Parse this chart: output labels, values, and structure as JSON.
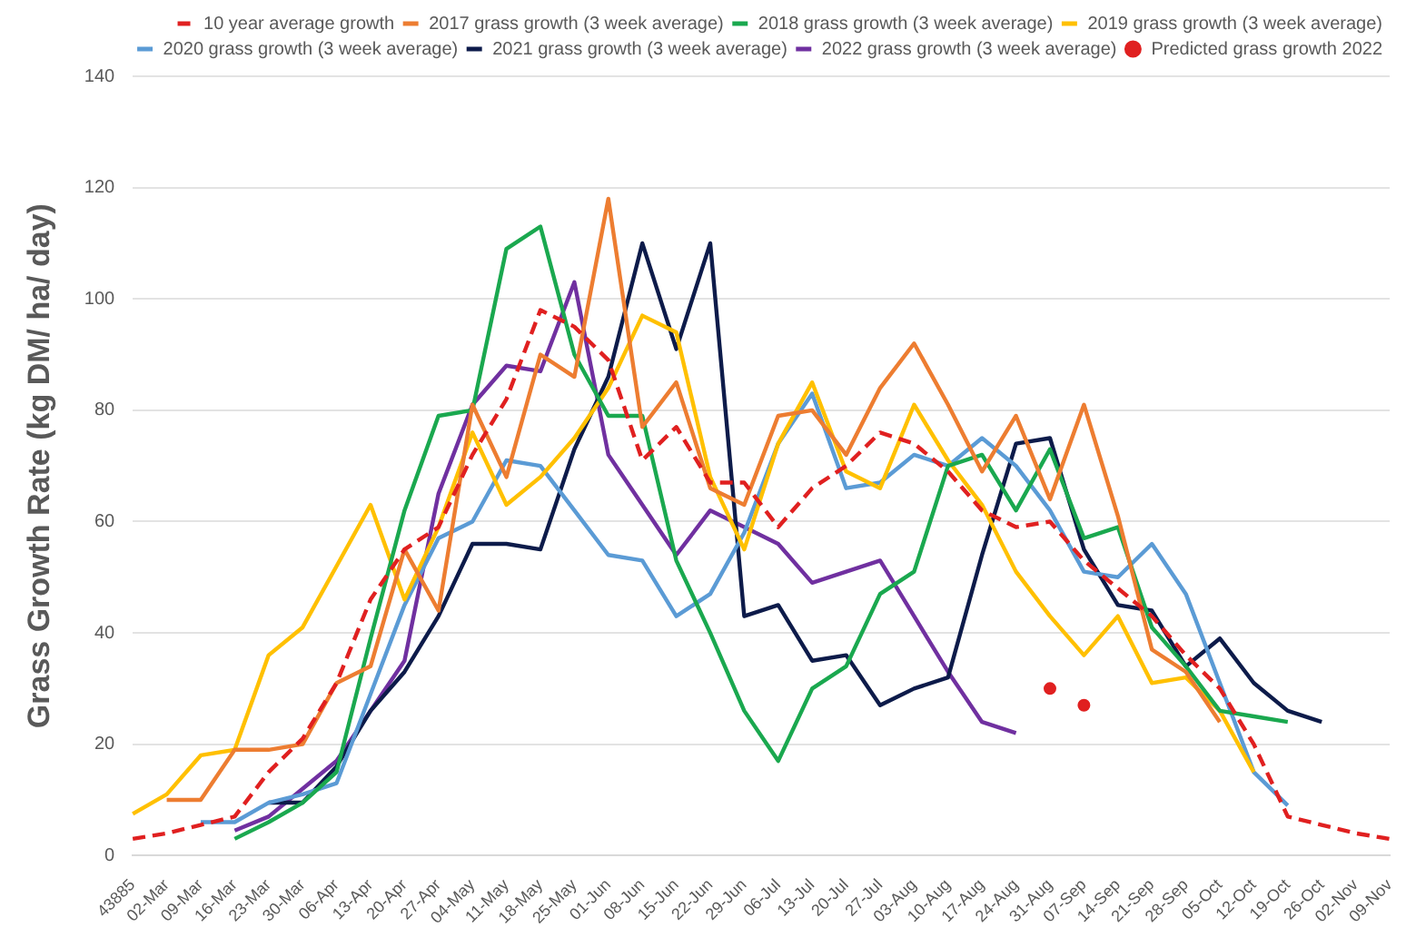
{
  "chart_data": {
    "type": "line",
    "ylabel": "Grass Growth Rate (kg DM/ ha/ day)",
    "categories": [
      "43885",
      "02-Mar",
      "09-Mar",
      "16-Mar",
      "23-Mar",
      "30-Mar",
      "06-Apr",
      "13-Apr",
      "20-Apr",
      "27-Apr",
      "04-May",
      "11-May",
      "18-May",
      "25-May",
      "01-Jun",
      "08-Jun",
      "15-Jun",
      "22-Jun",
      "29-Jun",
      "06-Jul",
      "13-Jul",
      "20-Jul",
      "27-Jul",
      "03-Aug",
      "10-Aug",
      "17-Aug",
      "24-Aug",
      "31-Aug",
      "07-Sep",
      "14-Sep",
      "21-Sep",
      "28-Sep",
      "05-Oct",
      "12-Oct",
      "19-Oct",
      "26-Oct",
      "02-Nov",
      "09-Nov"
    ],
    "ylim": [
      0,
      140
    ],
    "yticks": [
      0,
      20,
      40,
      60,
      80,
      100,
      120,
      140
    ],
    "grid": "y",
    "legend": "top right",
    "marker": "none",
    "series": [
      {
        "name": "10 year average growth",
        "color": "#e02020",
        "line_style": "dashed",
        "values": [
          3,
          4,
          5.5,
          7,
          15,
          21,
          31,
          46,
          55,
          59,
          72,
          82,
          98,
          95,
          89,
          71,
          77,
          67,
          67,
          59,
          66,
          70,
          76,
          74,
          69,
          62,
          59,
          60,
          53,
          48,
          43,
          36,
          30,
          20,
          7,
          5.5,
          4,
          3
        ]
      },
      {
        "name": "2017 grass growth (3 week average)",
        "color": "#ed7d31",
        "values": [
          null,
          10,
          10,
          19,
          19,
          20,
          31,
          34,
          55,
          44,
          81,
          68,
          90,
          86,
          118,
          77,
          85,
          66,
          63,
          79,
          80,
          72,
          84,
          92,
          81,
          69,
          79,
          64,
          81,
          61,
          37,
          33,
          24,
          null,
          null,
          null,
          null,
          null
        ]
      },
      {
        "name": "2018 grass growth (3 week average)",
        "color": "#1aa84f",
        "values": [
          null,
          null,
          null,
          3,
          6,
          9.5,
          15,
          39,
          62,
          79,
          80,
          109,
          113,
          90,
          79,
          79,
          53,
          40,
          26,
          17,
          30,
          34,
          47,
          51,
          70,
          72,
          62,
          73,
          57,
          59,
          41,
          34,
          26,
          25,
          24,
          null,
          null,
          null
        ]
      },
      {
        "name": "2019 grass growth (3 week average)",
        "color": "#ffc000",
        "values": [
          7.5,
          11,
          18,
          19,
          36,
          41,
          52,
          63,
          46,
          59,
          76,
          63,
          68,
          75,
          84,
          97,
          94,
          68,
          55,
          74,
          85,
          69,
          66,
          81,
          71,
          63,
          51,
          43,
          36,
          43,
          31,
          32,
          26,
          15,
          null,
          null,
          null,
          null
        ]
      },
      {
        "name": "2020 grass growth (3 week average)",
        "color": "#5b9bd5",
        "values": [
          null,
          null,
          6,
          6,
          9.5,
          11,
          13,
          29,
          45,
          57,
          60,
          71,
          70,
          62,
          54,
          53,
          43,
          47,
          58,
          74,
          83,
          66,
          67,
          72,
          70,
          75,
          70,
          62,
          51,
          50,
          56,
          47,
          31,
          15,
          9,
          null,
          null,
          null
        ]
      },
      {
        "name": "2021 grass growth (3 week average)",
        "color": "#0d1b4a",
        "values": [
          null,
          null,
          null,
          null,
          9.5,
          9.5,
          16,
          26,
          33,
          43,
          56,
          56,
          55,
          73,
          86,
          110,
          91,
          110,
          43,
          45,
          35,
          36,
          27,
          30,
          32,
          54,
          74,
          75,
          55,
          45,
          44,
          34,
          39,
          31,
          26,
          24,
          null,
          null
        ]
      },
      {
        "name": "2022 grass growth (3 week average)",
        "color": "#7030a0",
        "values": [
          null,
          null,
          null,
          4.5,
          7,
          12,
          17,
          26,
          35,
          65,
          81,
          88,
          87,
          103,
          72,
          63,
          54,
          62,
          59,
          56,
          49,
          51,
          53,
          43,
          33,
          24,
          22,
          null,
          null,
          null,
          null,
          null,
          null,
          null,
          null,
          null,
          null,
          null
        ]
      },
      {
        "name": "Predicted grass growth 2022",
        "type": "scatter",
        "marker": "circle",
        "color": "#e02020",
        "x": [
          "31-Aug",
          "07-Sep"
        ],
        "values": [
          30,
          27
        ]
      }
    ]
  }
}
